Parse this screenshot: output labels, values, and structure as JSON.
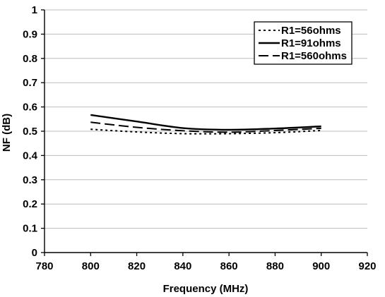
{
  "chart_data": {
    "type": "line",
    "xlabel": "Frequency (MHz)",
    "ylabel": "NF (dB)",
    "xlim": [
      780,
      920
    ],
    "ylim": [
      0,
      1
    ],
    "xticks": [
      "780",
      "800",
      "820",
      "840",
      "860",
      "880",
      "900",
      "920"
    ],
    "yticks": [
      "0",
      "0.1",
      "0.2",
      "0.3",
      "0.4",
      "0.5",
      "0.6",
      "0.7",
      "0.8",
      "0.9",
      "1"
    ],
    "grid": "horizontal",
    "legend_position": "top-right",
    "series": [
      {
        "name": "R1=56ohms",
        "style": "dotted",
        "x": [
          800,
          820,
          840,
          860,
          880,
          900
        ],
        "y": [
          0.508,
          0.497,
          0.49,
          0.49,
          0.494,
          0.503
        ]
      },
      {
        "name": "R1=91ohms",
        "style": "solid",
        "x": [
          800,
          820,
          840,
          860,
          880,
          900
        ],
        "y": [
          0.567,
          0.54,
          0.513,
          0.506,
          0.511,
          0.52
        ]
      },
      {
        "name": "R1=560ohms",
        "style": "dashed",
        "x": [
          800,
          820,
          840,
          860,
          880,
          900
        ],
        "y": [
          0.537,
          0.516,
          0.502,
          0.496,
          0.503,
          0.512
        ]
      }
    ]
  }
}
